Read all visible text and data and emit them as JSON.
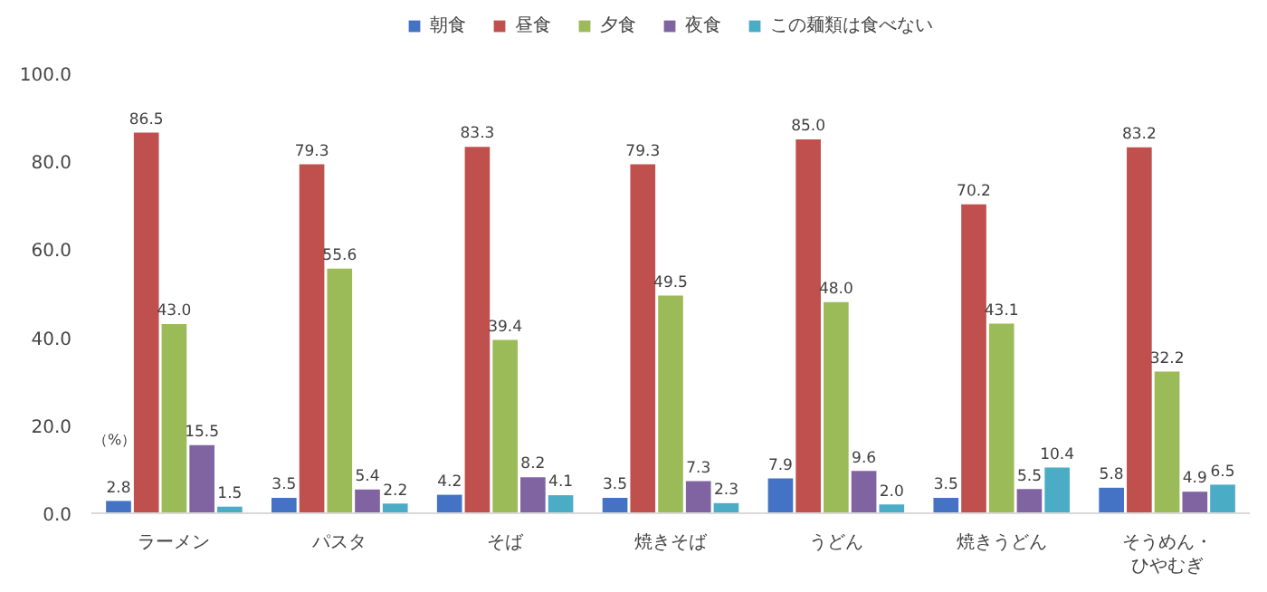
{
  "chart_data": {
    "type": "bar",
    "categories": [
      "ラーメン",
      "パスタ",
      "そば",
      "焼きそば",
      "うどん",
      "焼きうどん",
      "そうめん・ひやむぎ"
    ],
    "series": [
      {
        "name": "朝食",
        "color": "#4472c4",
        "values": [
          2.8,
          3.5,
          4.2,
          3.5,
          7.9,
          3.5,
          5.8
        ],
        "value_labels": [
          "2.8",
          "3.5",
          "4.2",
          "3.5",
          "7.9",
          "3.5",
          "5.8"
        ]
      },
      {
        "name": "昼食",
        "color": "#c0504d",
        "values": [
          86.5,
          79.3,
          83.3,
          79.3,
          85.0,
          70.2,
          83.2
        ],
        "value_labels": [
          "86.5",
          "79.3",
          "83.3",
          "79.3",
          "85.0",
          "70.2",
          "83.2"
        ]
      },
      {
        "name": "夕食",
        "color": "#9bbb59",
        "values": [
          43.0,
          55.6,
          39.4,
          49.5,
          48.0,
          43.1,
          32.2
        ],
        "value_labels": [
          "43.0",
          "55.6",
          "39.4",
          "49.5",
          "48.0",
          "43.1",
          "32.2"
        ]
      },
      {
        "name": "夜食",
        "color": "#8064a2",
        "values": [
          15.5,
          5.4,
          8.2,
          7.3,
          9.6,
          5.5,
          4.9
        ],
        "value_labels": [
          "15.5",
          "5.4",
          "8.2",
          "7.3",
          "9.6",
          "5.5",
          "4.9"
        ]
      },
      {
        "name": "この麺類は食べない",
        "color": "#4bacc6",
        "values": [
          1.5,
          2.2,
          4.1,
          2.3,
          2.0,
          10.4,
          6.5
        ],
        "value_labels": [
          "1.5",
          "2.2",
          "4.1",
          "2.3",
          "2.0",
          "10.4",
          "6.5"
        ]
      }
    ],
    "ylim": [
      0,
      100
    ],
    "yticks": [
      {
        "value": 0,
        "label": "0.0"
      },
      {
        "value": 20,
        "label": "20.0"
      },
      {
        "value": 40,
        "label": "40.0"
      },
      {
        "value": 60,
        "label": "60.0"
      },
      {
        "value": 80,
        "label": "80.0"
      },
      {
        "value": 100,
        "label": "100.0"
      }
    ],
    "annotations": [
      "（%）"
    ],
    "legend": "top",
    "grid": false
  }
}
